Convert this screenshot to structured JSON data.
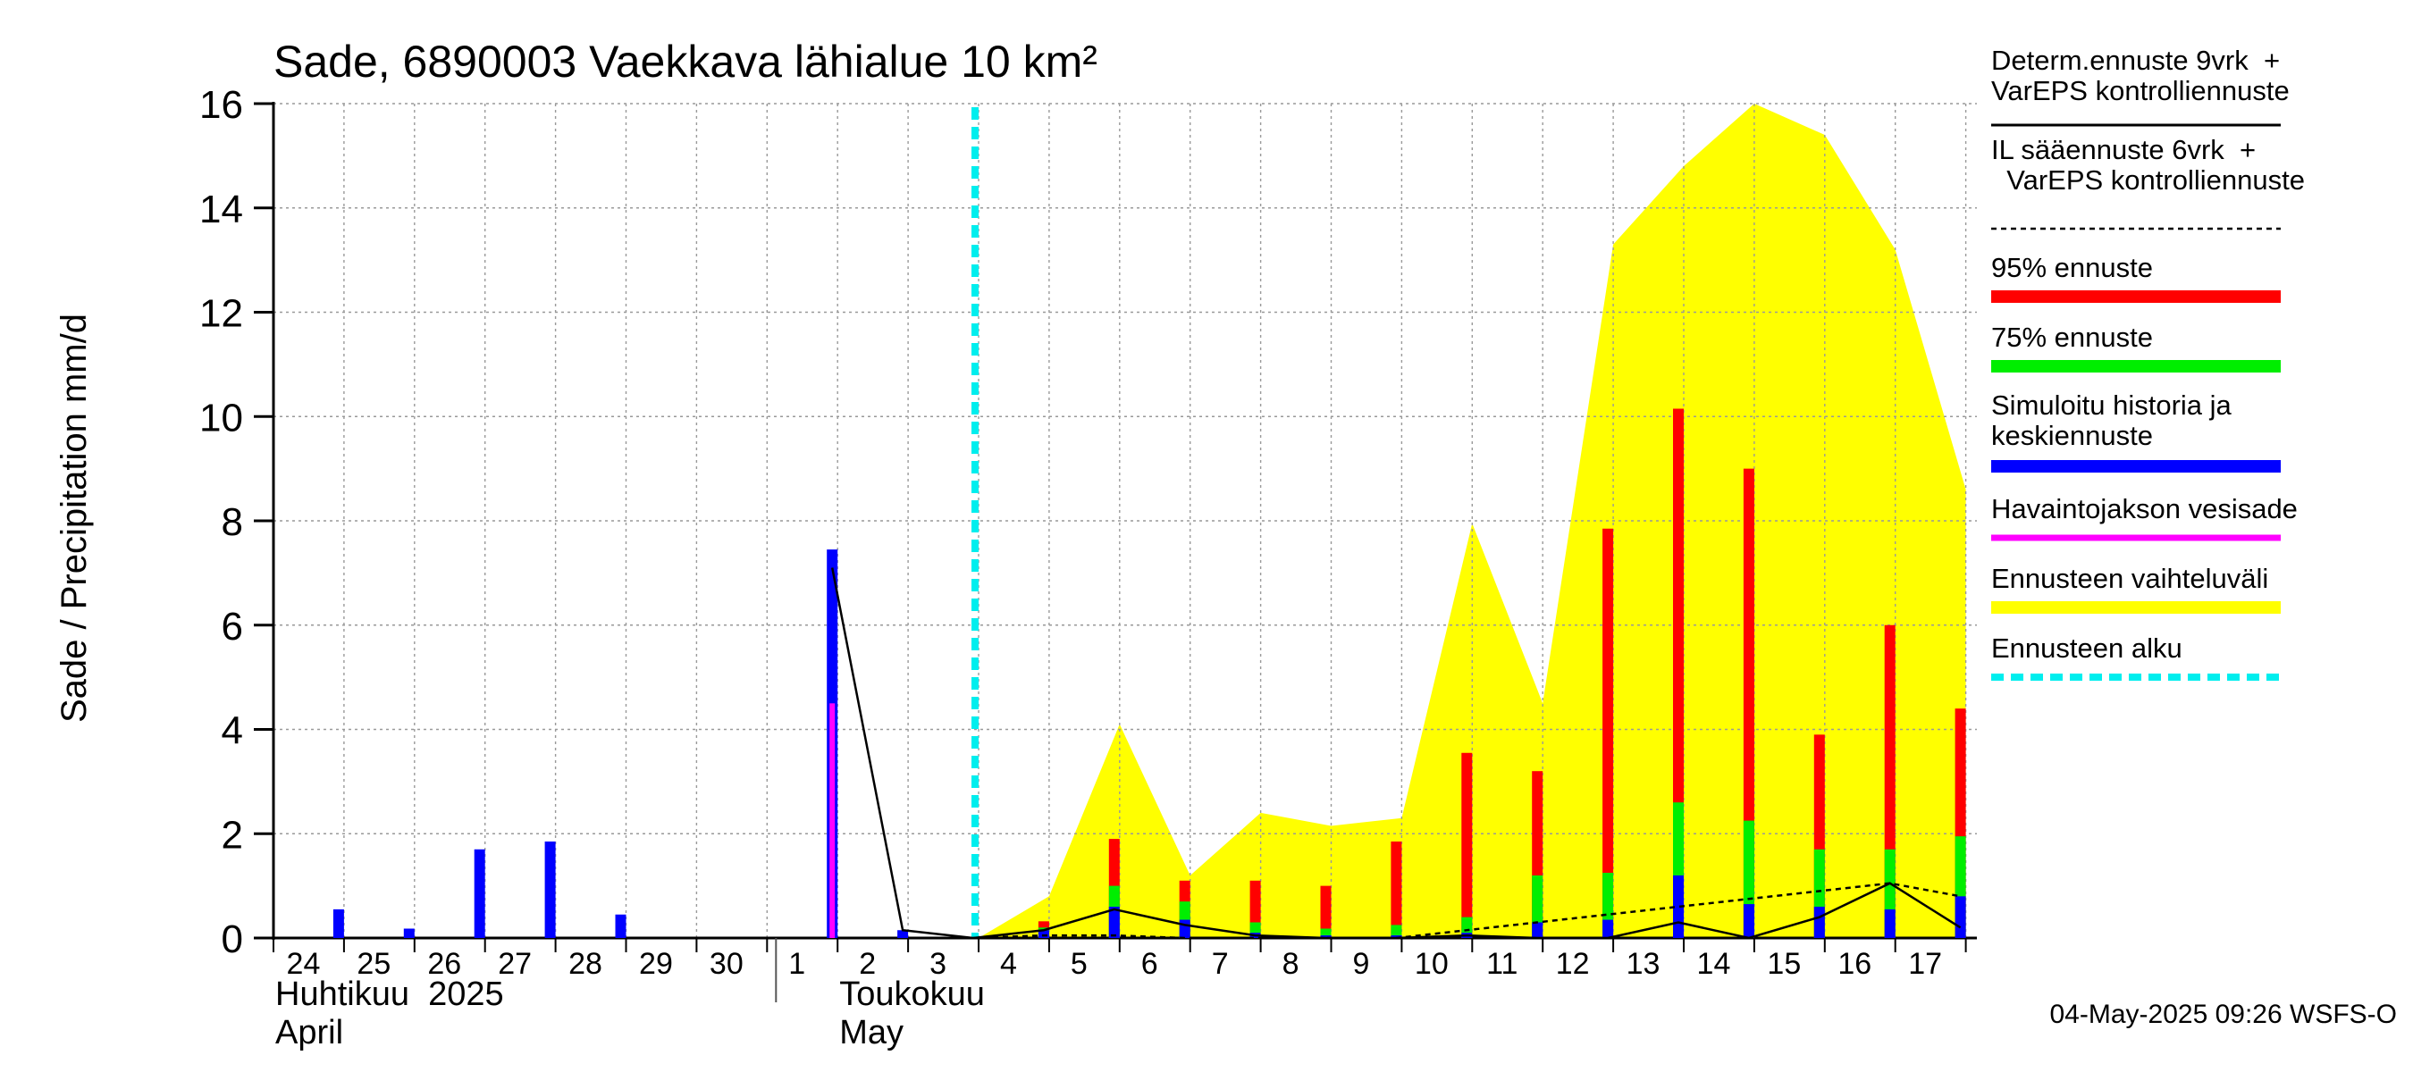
{
  "chart_data": {
    "type": "bar",
    "title": "Sade, 6890003 Vaekkava lähialue 10 km²",
    "ylabel": "Sade / Precipitation   mm/d",
    "ylim": [
      0,
      16
    ],
    "yticks": [
      0,
      2,
      4,
      6,
      8,
      10,
      12,
      14,
      16
    ],
    "x_day_labels": [
      "24",
      "25",
      "26",
      "27",
      "28",
      "29",
      "30",
      "1",
      "2",
      "3",
      "4",
      "5",
      "6",
      "7",
      "8",
      "9",
      "10",
      "11",
      "12",
      "13",
      "14",
      "15",
      "16",
      "17"
    ],
    "month_labels": [
      {
        "line1": "Huhtikuu  2025",
        "line2": "April",
        "at_day": 0
      },
      {
        "line1": "Toukokuu",
        "line2": "May",
        "at_day": 8
      }
    ],
    "forecast_start_day": 10,
    "observed_precipitation": [
      {
        "day": 8,
        "value": 4.5
      }
    ],
    "simulated_history": [
      {
        "day": 1,
        "value": 0.55
      },
      {
        "day": 2,
        "value": 0.18
      },
      {
        "day": 3,
        "value": 1.7
      },
      {
        "day": 4,
        "value": 1.85
      },
      {
        "day": 5,
        "value": 0.45
      },
      {
        "day": 8,
        "value": 7.45
      },
      {
        "day": 9,
        "value": 0.15
      }
    ],
    "forecast_bars": [
      {
        "day": 11,
        "p95": 0.32,
        "p75": 0.2,
        "median": 0.15
      },
      {
        "day": 12,
        "p95": 1.9,
        "p75": 1.0,
        "median": 0.6
      },
      {
        "day": 13,
        "p95": 1.1,
        "p75": 0.7,
        "median": 0.35
      },
      {
        "day": 14,
        "p95": 1.1,
        "p75": 0.3,
        "median": 0.1
      },
      {
        "day": 15,
        "p95": 1.0,
        "p75": 0.18,
        "median": 0.05
      },
      {
        "day": 16,
        "p95": 1.85,
        "p75": 0.25,
        "median": 0.05
      },
      {
        "day": 17,
        "p95": 3.55,
        "p75": 0.4,
        "median": 0.1
      },
      {
        "day": 18,
        "p95": 3.2,
        "p75": 1.2,
        "median": 0.3
      },
      {
        "day": 19,
        "p95": 7.85,
        "p75": 1.25,
        "median": 0.35
      },
      {
        "day": 20,
        "p95": 10.15,
        "p75": 2.6,
        "median": 1.2
      },
      {
        "day": 21,
        "p95": 9.0,
        "p75": 2.25,
        "median": 0.65
      },
      {
        "day": 22,
        "p95": 3.9,
        "p75": 1.7,
        "median": 0.6
      },
      {
        "day": 23,
        "p95": 6.0,
        "p75": 1.7,
        "median": 0.55
      },
      {
        "day": 24,
        "p95": 4.4,
        "p75": 1.95,
        "median": 0.8
      }
    ],
    "ensemble_range": {
      "x": [
        10,
        11,
        12,
        13,
        14,
        15,
        16,
        17,
        18,
        19,
        20,
        21,
        22,
        23,
        24
      ],
      "y": [
        0,
        0.8,
        4.1,
        1.2,
        2.4,
        2.15,
        2.3,
        7.95,
        4.5,
        13.3,
        14.8,
        16.0,
        15.4,
        13.2,
        8.6
      ]
    },
    "deterministic_forecast": {
      "x": [
        8,
        9,
        10,
        11,
        12,
        13,
        14,
        15,
        16,
        17,
        18,
        19,
        20,
        21,
        22,
        23,
        24
      ],
      "y": [
        7.1,
        0.15,
        0,
        0.15,
        0.55,
        0.25,
        0.05,
        0,
        0,
        0.05,
        0,
        0,
        0.3,
        0,
        0.4,
        1.05,
        0.2
      ]
    },
    "il_forecast": {
      "x": [
        10,
        11,
        12,
        13,
        14,
        15,
        16,
        23,
        24
      ],
      "y": [
        0,
        0.05,
        0.05,
        0,
        0,
        0,
        0,
        1.05,
        0.8
      ]
    },
    "legend": [
      {
        "label": "Determ.ennuste 9vrk  +\nVarEPS kontrolliennuste",
        "style": "solid-thin",
        "color": "#000000"
      },
      {
        "label": "IL sääennuste 6vrk  +\n  VarEPS kontrolliennuste",
        "style": "dashed-thin",
        "color": "#000000"
      },
      {
        "label": "95% ennuste",
        "style": "thick",
        "color": "#ff0000"
      },
      {
        "label": "75% ennuste",
        "style": "thick",
        "color": "#00ee00"
      },
      {
        "label": "Simuloitu historia ja\nkeskiennuste",
        "style": "thick",
        "color": "#0000ff"
      },
      {
        "label": "Havaintojakson vesisade",
        "style": "medium",
        "color": "#ff00ff"
      },
      {
        "label": "Ennusteen vaihteluväli",
        "style": "thick",
        "color": "#ffff00"
      },
      {
        "label": "Ennusteen alku",
        "style": "dashed-thick",
        "color": "#00eeee"
      }
    ],
    "footer": "04-May-2025 09:26 WSFS-O",
    "colors": {
      "p95": "#ff0000",
      "p75": "#00ee00",
      "median": "#0000ff",
      "observed": "#ff00ff",
      "range": "#ffff00",
      "forecast_start": "#00eeee",
      "grid": "#999999",
      "axis": "#000000"
    }
  }
}
